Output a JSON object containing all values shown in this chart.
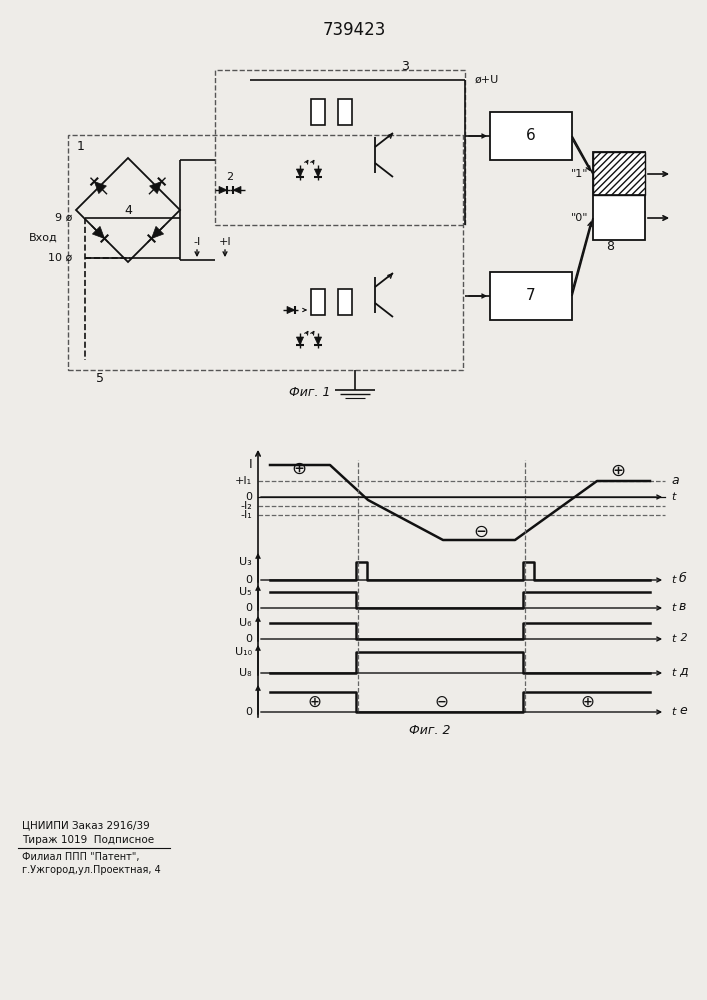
{
  "title": "739423",
  "fig1_label": "Фиг. 1",
  "fig2_label": "Фиг. 2",
  "bottom_text1": "ЦНИИПИ Заказ 2916/39",
  "bottom_text2": "Тираж 1019  Подписное",
  "bottom_text3": "Филиал ППП \"Патент\",",
  "bottom_text4": "г.Ужгород,ул.Проектная, 4",
  "bg_color": "#eeece8",
  "line_color": "#111111"
}
